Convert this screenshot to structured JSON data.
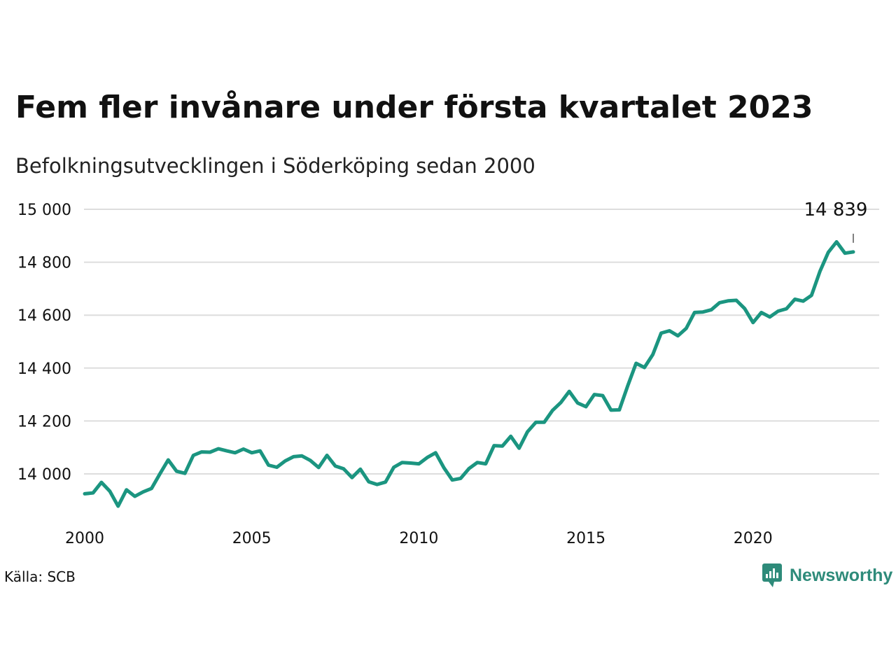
{
  "header": {
    "title": "Fem fler invånare under första kvartalet 2023",
    "subtitle": "Befolkningsutvecklingen i Söderköping sedan 2000"
  },
  "footer": {
    "source": "Källa: SCB",
    "brand": "Newsworthy"
  },
  "colors": {
    "line": "#1b9580",
    "grid": "#dddddd",
    "brand": "#2e8b7a"
  },
  "icons": {
    "brand_logo": "newsworthy-logo-icon"
  },
  "chart_data": {
    "type": "line",
    "x_start": 2000.0,
    "x_step": 0.25,
    "xlim": [
      2000,
      2023.5
    ],
    "ylim": [
      13850,
      15000
    ],
    "yticks": [
      14000,
      14200,
      14400,
      14600,
      14800,
      15000
    ],
    "ytick_labels": [
      "14 000",
      "14 200",
      "14 400",
      "14 600",
      "14 800",
      "15 000"
    ],
    "xticks": [
      2000,
      2005,
      2010,
      2015,
      2020
    ],
    "xtick_labels": [
      "2000",
      "2005",
      "2010",
      "2015",
      "2020"
    ],
    "grid": true,
    "values": [
      13925,
      13928,
      13968,
      13935,
      13878,
      13940,
      13915,
      13932,
      13945,
      14000,
      14053,
      14010,
      14002,
      14070,
      14083,
      14082,
      14095,
      14087,
      14080,
      14094,
      14080,
      14087,
      14033,
      14025,
      14049,
      14065,
      14068,
      14051,
      14024,
      14070,
      14030,
      14019,
      13986,
      14018,
      13970,
      13960,
      13969,
      14025,
      14043,
      14041,
      14038,
      14062,
      14080,
      14023,
      13977,
      13983,
      14020,
      14043,
      14038,
      14107,
      14105,
      14142,
      14097,
      14159,
      14195,
      14195,
      14240,
      14270,
      14312,
      14268,
      14254,
      14300,
      14296,
      14241,
      14242,
      14333,
      14418,
      14402,
      14451,
      14532,
      14541,
      14522,
      14550,
      14610,
      14612,
      14620,
      14647,
      14654,
      14656,
      14625,
      14572,
      14610,
      14593,
      14615,
      14624,
      14660,
      14653,
      14675,
      14765,
      14837,
      14877,
      14834,
      14839
    ],
    "annotation": {
      "label": "14 839",
      "value": 14839
    }
  }
}
